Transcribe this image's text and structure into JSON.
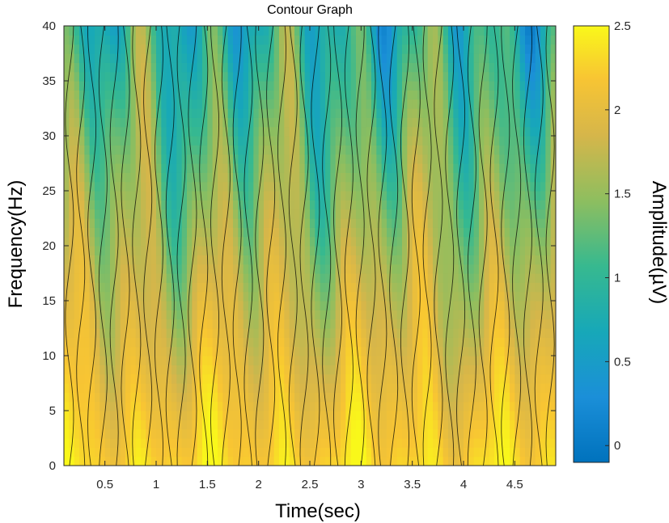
{
  "chart_data": {
    "type": "contour",
    "title": "Contour Graph",
    "xlabel": "Time(sec)",
    "ylabel": "Frequency(Hz)",
    "xlim": [
      0.1,
      4.9
    ],
    "ylim": [
      0,
      40
    ],
    "xticks": [
      0.5,
      1,
      1.5,
      2,
      2.5,
      3,
      3.5,
      4,
      4.5
    ],
    "xtick_labels": [
      "0.5",
      "1",
      "1.5",
      "2",
      "2.5",
      "3",
      "3.5",
      "4",
      "4.5"
    ],
    "yticks": [
      0,
      5,
      10,
      15,
      20,
      25,
      30,
      35,
      40
    ],
    "ytick_labels": [
      "0",
      "5",
      "10",
      "15",
      "20",
      "25",
      "30",
      "35",
      "40"
    ],
    "colorbar": {
      "label": "Amplitude(µV)",
      "range": [
        -0.1,
        2.5
      ],
      "ticks": [
        0,
        0.5,
        1,
        1.5,
        2,
        2.5
      ],
      "tick_labels": [
        "0",
        "0.5",
        "1",
        "1.5",
        "2",
        "2.5"
      ],
      "colormap": "parula"
    },
    "line_color": "#000000",
    "description_pattern": {
      "high_amplitude_band_hz": [
        0,
        10
      ],
      "high_amplitude_value": 2.3,
      "low_amplitude_band_hz": [
        30,
        40
      ],
      "low_amplitude_value": 0.9
    }
  }
}
